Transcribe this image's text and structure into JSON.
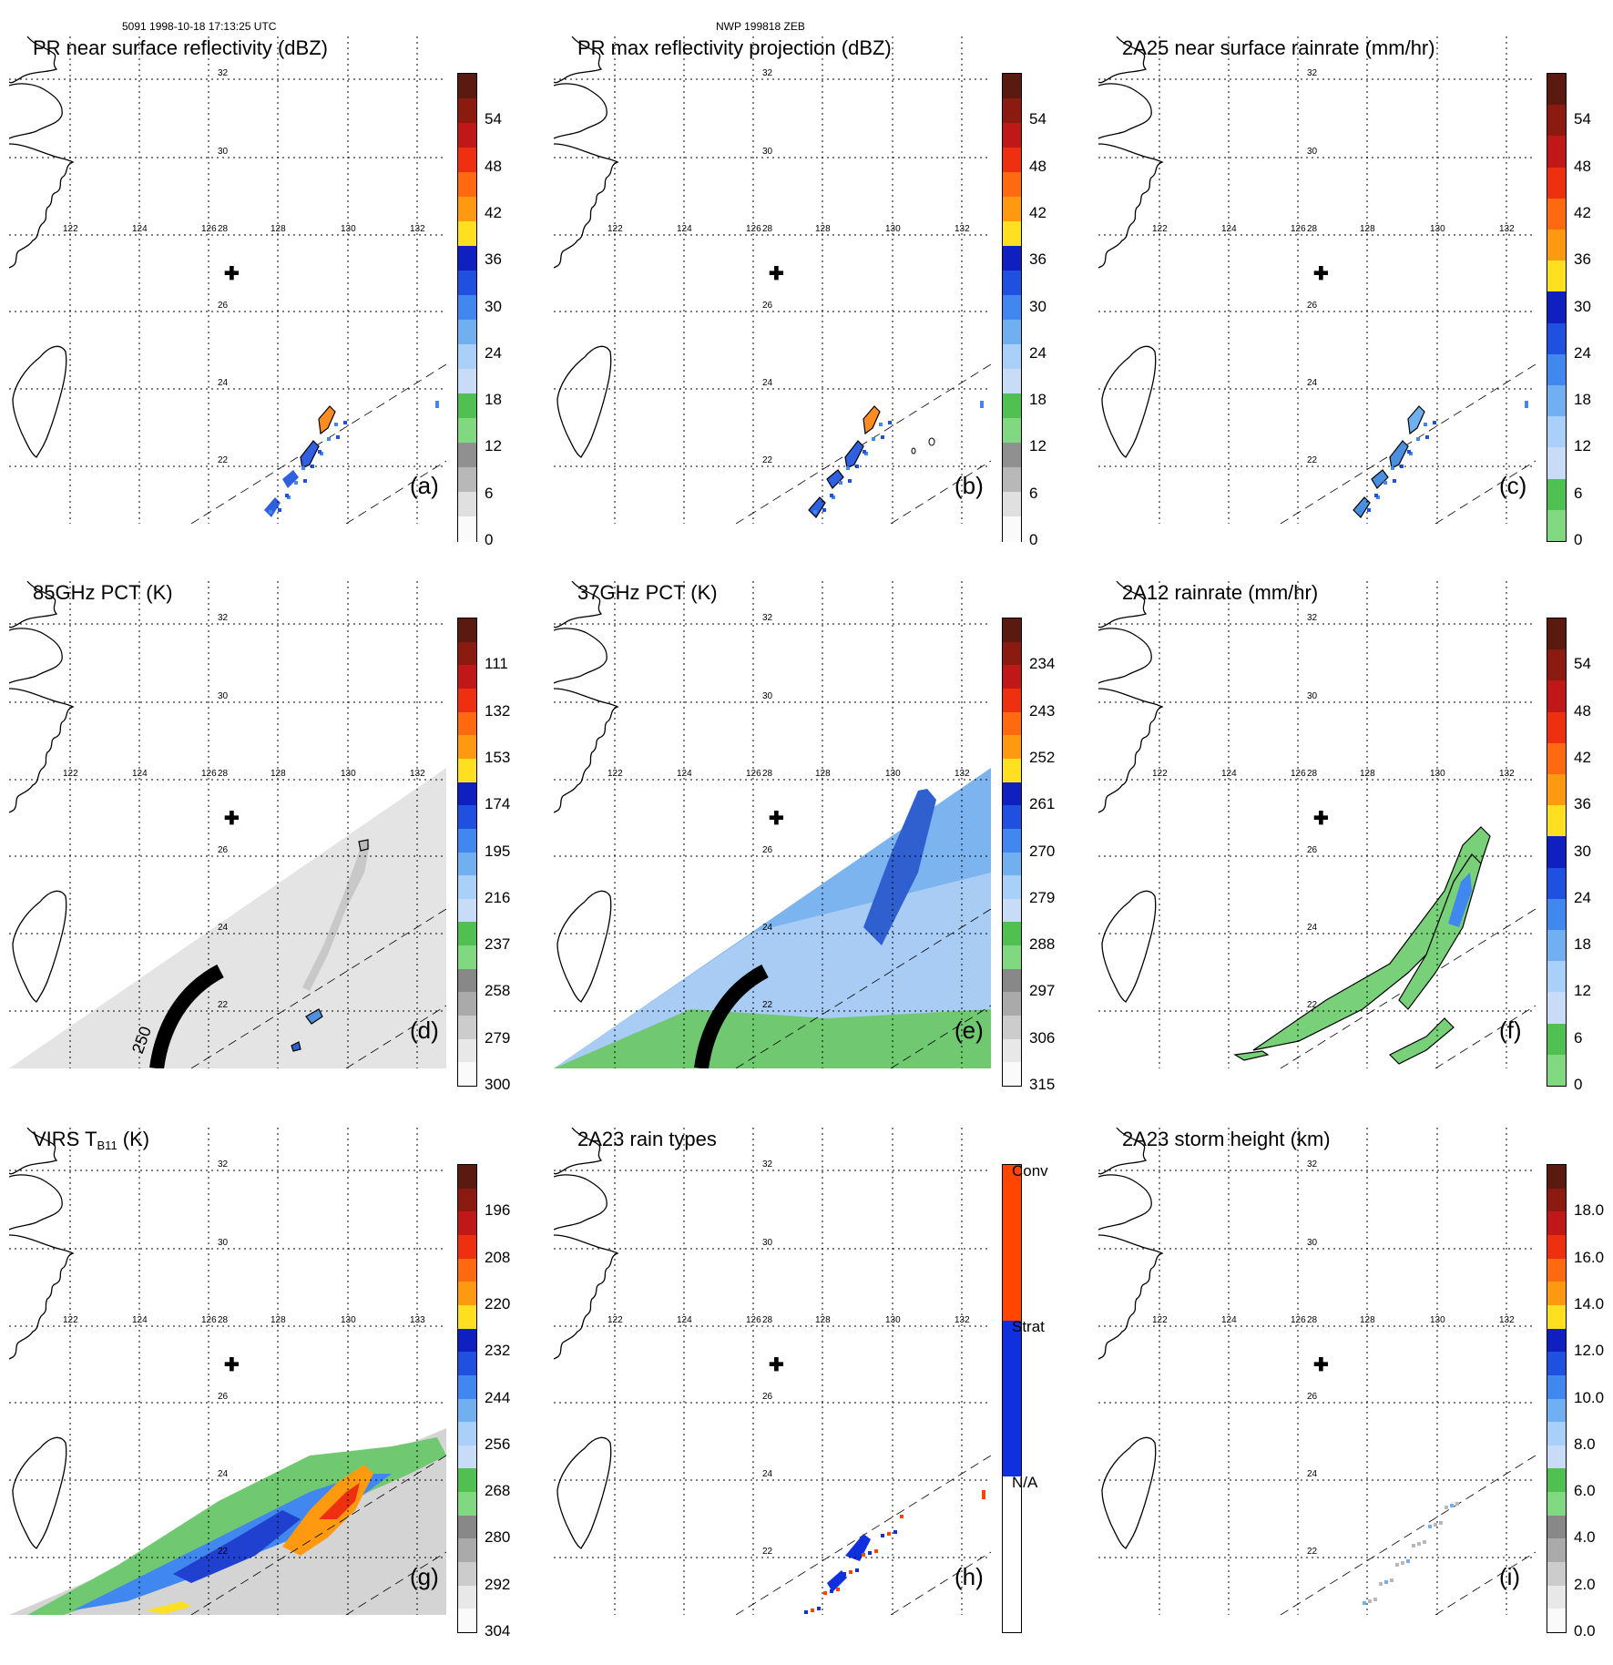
{
  "header": {
    "left": "5091 1998-10-18 17:13:25 UTC",
    "center": "NWP 199818 ZEB"
  },
  "map_ticks": {
    "lat": [
      "32",
      "30",
      "28",
      "26",
      "24",
      "22"
    ],
    "lon": [
      "122",
      "124",
      "126",
      "128",
      "130",
      "132"
    ]
  },
  "colors": {
    "convective": "#ff4500",
    "stratiform": "#1030e0",
    "green": "#70d070",
    "blue_light": "#a0c8f0",
    "orange": "#ff8c00"
  },
  "panels": [
    {
      "id": "a",
      "title": "PR near surface reflectivity (dBZ)",
      "label": "(a)",
      "colorbar": [
        "54",
        "48",
        "42",
        "36",
        "30",
        "24",
        "18",
        "12",
        "6",
        "0"
      ],
      "palette": "reflectivity"
    },
    {
      "id": "b",
      "title": "PR max reflectivity projection (dBZ)",
      "label": "(b)",
      "colorbar": [
        "54",
        "48",
        "42",
        "36",
        "30",
        "24",
        "18",
        "12",
        "6",
        "0"
      ],
      "palette": "reflectivity"
    },
    {
      "id": "c",
      "title": "2A25 near surface rainrate (mm/hr)",
      "label": "(c)",
      "colorbar": [
        "54",
        "48",
        "42",
        "36",
        "30",
        "24",
        "18",
        "12",
        "6",
        "0"
      ],
      "palette": "rainrate"
    },
    {
      "id": "d",
      "title": "85GHz PCT (K)",
      "label": "(d)",
      "colorbar": [
        "111",
        "132",
        "153",
        "174",
        "195",
        "216",
        "237",
        "258",
        "279",
        "300"
      ],
      "palette": "pct",
      "swath_label": "250"
    },
    {
      "id": "e",
      "title": "37GHz PCT (K)",
      "label": "(e)",
      "colorbar": [
        "234",
        "243",
        "252",
        "261",
        "270",
        "279",
        "288",
        "297",
        "306",
        "315"
      ],
      "palette": "pct"
    },
    {
      "id": "f",
      "title": "2A12 rainrate (mm/hr)",
      "label": "(f)",
      "colorbar": [
        "54",
        "48",
        "42",
        "36",
        "30",
        "24",
        "18",
        "12",
        "6",
        "0"
      ],
      "palette": "rainrate"
    },
    {
      "id": "g",
      "title": "VIRS T",
      "title_sub": "B11",
      "title_unit": " (K)",
      "label": "(g)",
      "colorbar": [
        "196",
        "208",
        "220",
        "232",
        "244",
        "256",
        "268",
        "280",
        "292",
        "304"
      ],
      "palette": "pct",
      "lon_override": "133"
    },
    {
      "id": "h",
      "title": "2A23 rain types",
      "label": "(h)",
      "colorbar": [
        "Conv",
        "Strat",
        "N/A"
      ],
      "palette": "raintype"
    },
    {
      "id": "i",
      "title": "2A23 storm height (km)",
      "label": "(i)",
      "colorbar": [
        "18.0",
        "16.0",
        "14.0",
        "12.0",
        "10.0",
        "8.0",
        "6.0",
        "4.0",
        "2.0",
        "0.0"
      ],
      "palette": "height"
    }
  ]
}
